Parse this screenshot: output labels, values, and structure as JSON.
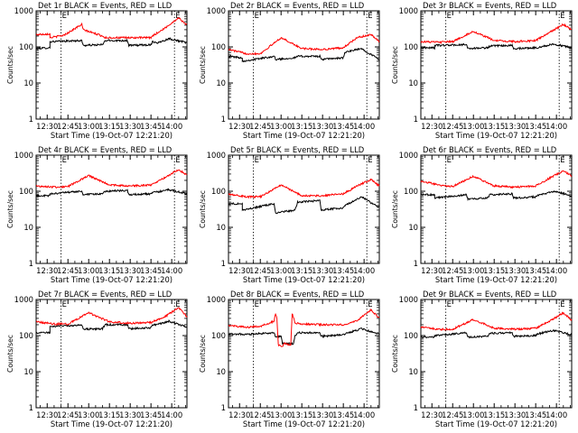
{
  "chart_data": [
    {
      "type": "line",
      "title": "Det 1r BLACK = Events, RED = LLD",
      "xlabel": "Start Time (19-Oct-07 12:21:20)",
      "ylabel": "Counts/sec",
      "x_ticks": [
        "12:30",
        "12:45",
        "13:00",
        "13:15",
        "13:30",
        "13:45",
        "14:00"
      ],
      "y_ticks": [
        "1",
        "10",
        "100",
        "1000"
      ],
      "ylim": [
        1,
        1000
      ],
      "log_y": true,
      "xlim_minutes": [
        -8,
        101
      ],
      "markers": [
        {
          "x": 10,
          "label": "E"
        },
        {
          "x": 92,
          "label": "E"
        }
      ],
      "series": [
        {
          "name": "BLACK",
          "color": "#000000",
          "x": [
            -8,
            2,
            2,
            25,
            26,
            40,
            42,
            58,
            59,
            75,
            76,
            80,
            88,
            101
          ],
          "values": [
            90,
            95,
            140,
            150,
            110,
            115,
            150,
            150,
            110,
            115,
            140,
            130,
            170,
            130
          ]
        },
        {
          "name": "RED",
          "color": "#ff0000",
          "x": [
            -8,
            2,
            2,
            12,
            25,
            26,
            40,
            42,
            58,
            59,
            75,
            76,
            85,
            95,
            101
          ],
          "values": [
            220,
            230,
            180,
            210,
            420,
            300,
            200,
            180,
            180,
            180,
            180,
            200,
            330,
            640,
            400
          ]
        }
      ]
    },
    {
      "type": "line",
      "title": "Det 2r BLACK = Events, RED = LLD",
      "xlabel": "Start Time (19-Oct-07 12:21:20)",
      "ylabel": "Counts/sec",
      "x_ticks": [
        "12:30",
        "12:45",
        "13:00",
        "13:15",
        "13:30",
        "13:45",
        "14:00"
      ],
      "y_ticks": [
        "1",
        "10",
        "100",
        "1000"
      ],
      "ylim": [
        1,
        1000
      ],
      "log_y": true,
      "xlim_minutes": [
        -8,
        101
      ],
      "markers": [
        {
          "x": 10,
          "label": "E"
        },
        {
          "x": 92,
          "label": "E"
        }
      ],
      "series": [
        {
          "name": "BLACK",
          "color": "#000000",
          "x": [
            -8,
            2,
            2,
            25,
            26,
            40,
            42,
            58,
            59,
            75,
            76,
            88,
            101
          ],
          "values": [
            55,
            50,
            40,
            55,
            45,
            50,
            55,
            55,
            45,
            50,
            70,
            90,
            45
          ]
        },
        {
          "name": "RED",
          "color": "#ff0000",
          "x": [
            -8,
            5,
            15,
            30,
            45,
            60,
            75,
            85,
            95,
            101
          ],
          "values": [
            85,
            65,
            65,
            180,
            90,
            85,
            95,
            180,
            220,
            140
          ]
        }
      ]
    },
    {
      "type": "line",
      "title": "Det 3r BLACK = Events, RED = LLD",
      "xlabel": "Start Time (19-Oct-07 12:21:20)",
      "ylabel": "Counts/sec",
      "x_ticks": [
        "12:30",
        "12:45",
        "13:00",
        "13:15",
        "13:30",
        "13:45",
        "14:00"
      ],
      "y_ticks": [
        "1",
        "10",
        "100",
        "1000"
      ],
      "ylim": [
        1,
        1000
      ],
      "log_y": true,
      "xlim_minutes": [
        -8,
        101
      ],
      "markers": [
        {
          "x": 10,
          "label": "E"
        },
        {
          "x": 92,
          "label": "E"
        }
      ],
      "series": [
        {
          "name": "BLACK",
          "color": "#000000",
          "x": [
            -8,
            2,
            2,
            25,
            26,
            40,
            42,
            58,
            59,
            75,
            76,
            88,
            101
          ],
          "values": [
            95,
            95,
            110,
            115,
            90,
            95,
            105,
            110,
            90,
            95,
            95,
            120,
            95
          ]
        },
        {
          "name": "RED",
          "color": "#ff0000",
          "x": [
            -8,
            5,
            15,
            30,
            45,
            60,
            75,
            85,
            95,
            101
          ],
          "values": [
            140,
            135,
            140,
            270,
            150,
            140,
            150,
            250,
            420,
            300
          ]
        }
      ]
    },
    {
      "type": "line",
      "title": "Det 4r BLACK = Events, RED = LLD",
      "xlabel": "Start Time (19-Oct-07 12:21:20)",
      "ylabel": "Counts/sec",
      "x_ticks": [
        "12:30",
        "12:45",
        "13:00",
        "13:15",
        "13:30",
        "13:45",
        "14:00"
      ],
      "y_ticks": [
        "1",
        "10",
        "100",
        "1000"
      ],
      "ylim": [
        1,
        1000
      ],
      "log_y": true,
      "xlim_minutes": [
        -8,
        101
      ],
      "markers": [
        {
          "x": 10,
          "label": "E"
        },
        {
          "x": 92,
          "label": "E"
        }
      ],
      "series": [
        {
          "name": "BLACK",
          "color": "#000000",
          "x": [
            -8,
            2,
            2,
            25,
            26,
            40,
            42,
            58,
            59,
            75,
            76,
            88,
            101
          ],
          "values": [
            75,
            75,
            85,
            100,
            80,
            85,
            100,
            105,
            80,
            85,
            90,
            110,
            85
          ]
        },
        {
          "name": "RED",
          "color": "#ff0000",
          "x": [
            -8,
            5,
            15,
            30,
            45,
            60,
            75,
            85,
            95,
            101
          ],
          "values": [
            140,
            130,
            135,
            270,
            150,
            140,
            150,
            240,
            400,
            280
          ]
        }
      ]
    },
    {
      "type": "line",
      "title": "Det 5r BLACK = Events, RED = LLD",
      "xlabel": "Start Time (19-Oct-07 12:21:20)",
      "ylabel": "Counts/sec",
      "x_ticks": [
        "12:30",
        "12:45",
        "13:00",
        "13:15",
        "13:30",
        "13:45",
        "14:00"
      ],
      "y_ticks": [
        "1",
        "10",
        "100",
        "1000"
      ],
      "ylim": [
        1,
        1000
      ],
      "log_y": true,
      "xlim_minutes": [
        -8,
        101
      ],
      "markers": [
        {
          "x": 10,
          "label": "E"
        },
        {
          "x": 92,
          "label": "E"
        }
      ],
      "series": [
        {
          "name": "BLACK",
          "color": "#000000",
          "x": [
            -8,
            2,
            2,
            25,
            26,
            40,
            42,
            58,
            59,
            75,
            76,
            88,
            101
          ],
          "values": [
            45,
            45,
            30,
            45,
            25,
            30,
            50,
            55,
            30,
            35,
            40,
            70,
            35
          ]
        },
        {
          "name": "RED",
          "color": "#ff0000",
          "x": [
            -8,
            5,
            15,
            30,
            45,
            60,
            75,
            85,
            95,
            101
          ],
          "values": [
            85,
            70,
            70,
            150,
            75,
            75,
            85,
            140,
            210,
            140
          ]
        }
      ]
    },
    {
      "type": "line",
      "title": "Det 6r BLACK = Events, RED = LLD",
      "xlabel": "Start Time (19-Oct-07 12:21:20)",
      "ylabel": "Counts/sec",
      "x_ticks": [
        "12:30",
        "12:45",
        "13:00",
        "13:15",
        "13:30",
        "13:45",
        "14:00"
      ],
      "y_ticks": [
        "1",
        "10",
        "100",
        "1000"
      ],
      "ylim": [
        1,
        1000
      ],
      "log_y": true,
      "xlim_minutes": [
        -8,
        101
      ],
      "markers": [
        {
          "x": 10,
          "label": "E"
        },
        {
          "x": 92,
          "label": "E"
        }
      ],
      "series": [
        {
          "name": "BLACK",
          "color": "#000000",
          "x": [
            -8,
            2,
            2,
            25,
            26,
            40,
            42,
            58,
            59,
            75,
            76,
            88,
            101
          ],
          "values": [
            80,
            80,
            65,
            80,
            60,
            65,
            80,
            85,
            65,
            70,
            75,
            100,
            75
          ]
        },
        {
          "name": "RED",
          "color": "#ff0000",
          "x": [
            -8,
            5,
            15,
            30,
            45,
            60,
            75,
            85,
            95,
            101
          ],
          "values": [
            190,
            150,
            135,
            260,
            140,
            130,
            140,
            230,
            370,
            260
          ]
        }
      ]
    },
    {
      "type": "line",
      "title": "Det 7r BLACK = Events, RED = LLD",
      "xlabel": "Start Time (19-Oct-07 12:21:20)",
      "ylabel": "Counts/sec",
      "x_ticks": [
        "12:30",
        "12:45",
        "13:00",
        "13:15",
        "13:30",
        "13:45",
        "14:00"
      ],
      "y_ticks": [
        "1",
        "10",
        "100",
        "1000"
      ],
      "ylim": [
        1,
        1000
      ],
      "log_y": true,
      "xlim_minutes": [
        -8,
        101
      ],
      "markers": [
        {
          "x": 10,
          "label": "E"
        },
        {
          "x": 92,
          "label": "E"
        }
      ],
      "series": [
        {
          "name": "BLACK",
          "color": "#000000",
          "x": [
            -8,
            2,
            2,
            25,
            26,
            40,
            42,
            58,
            59,
            75,
            76,
            88,
            101
          ],
          "values": [
            120,
            120,
            180,
            195,
            150,
            155,
            200,
            200,
            155,
            165,
            190,
            250,
            170
          ]
        },
        {
          "name": "RED",
          "color": "#ff0000",
          "x": [
            -8,
            5,
            15,
            30,
            45,
            60,
            75,
            85,
            95,
            101
          ],
          "values": [
            240,
            210,
            210,
            430,
            240,
            220,
            230,
            330,
            600,
            330
          ]
        }
      ]
    },
    {
      "type": "line",
      "title": "Det 8r BLACK = Events, RED = LLD",
      "xlabel": "Start Time (19-Oct-07 12:21:20)",
      "ylabel": "Counts/sec",
      "x_ticks": [
        "12:30",
        "12:45",
        "13:00",
        "13:15",
        "13:30",
        "13:45",
        "14:00"
      ],
      "y_ticks": [
        "1",
        "10",
        "100",
        "1000"
      ],
      "ylim": [
        1,
        1000
      ],
      "log_y": true,
      "xlim_minutes": [
        -8,
        101
      ],
      "markers": [
        {
          "x": 10,
          "label": "E"
        },
        {
          "x": 92,
          "label": "E"
        }
      ],
      "series": [
        {
          "name": "BLACK",
          "color": "#000000",
          "x": [
            -8,
            2,
            2,
            25,
            26,
            30,
            31,
            39,
            40,
            42,
            58,
            59,
            75,
            76,
            88,
            101
          ],
          "values": [
            110,
            110,
            105,
            120,
            95,
            95,
            60,
            60,
            95,
            120,
            120,
            95,
            105,
            110,
            155,
            110
          ]
        },
        {
          "name": "RED",
          "color": "#ff0000",
          "x": [
            -8,
            5,
            15,
            25,
            26,
            27,
            28,
            31,
            32,
            37,
            38,
            39,
            40,
            45,
            60,
            75,
            85,
            95,
            101
          ],
          "values": [
            190,
            170,
            180,
            250,
            400,
            310,
            55,
            50,
            60,
            55,
            400,
            330,
            220,
            210,
            200,
            200,
            260,
            520,
            300
          ]
        }
      ]
    },
    {
      "type": "line",
      "title": "Det 9r BLACK = Events, RED = LLD",
      "xlabel": "Start Time (19-Oct-07 12:21:20)",
      "ylabel": "Counts/sec",
      "x_ticks": [
        "12:30",
        "12:45",
        "13:00",
        "13:15",
        "13:30",
        "13:45",
        "14:00"
      ],
      "y_ticks": [
        "1",
        "10",
        "100",
        "1000"
      ],
      "ylim": [
        1,
        1000
      ],
      "log_y": true,
      "xlim_minutes": [
        -8,
        101
      ],
      "markers": [
        {
          "x": 10,
          "label": "E"
        },
        {
          "x": 92,
          "label": "E"
        }
      ],
      "series": [
        {
          "name": "BLACK",
          "color": "#000000",
          "x": [
            -8,
            2,
            2,
            25,
            26,
            40,
            42,
            58,
            59,
            75,
            76,
            88,
            101
          ],
          "values": [
            90,
            90,
            100,
            120,
            90,
            95,
            115,
            120,
            95,
            100,
            110,
            140,
            105
          ]
        },
        {
          "name": "RED",
          "color": "#ff0000",
          "x": [
            -8,
            5,
            15,
            30,
            45,
            60,
            75,
            85,
            95,
            101
          ],
          "values": [
            170,
            150,
            150,
            280,
            160,
            150,
            160,
            250,
            430,
            270
          ]
        }
      ]
    }
  ]
}
